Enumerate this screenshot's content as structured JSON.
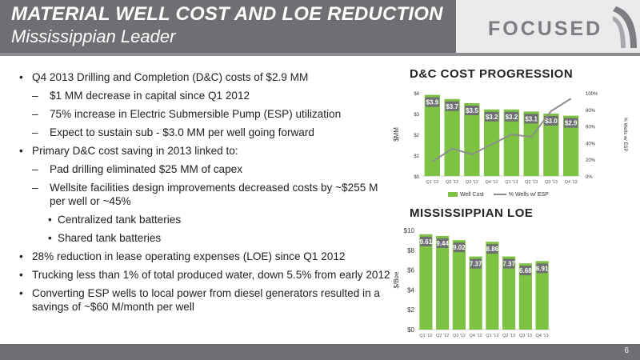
{
  "header": {
    "title": "MATERIAL WELL COST AND LOE REDUCTION",
    "subtitle": "Mississippian Leader",
    "logo_text": "FOCUSED"
  },
  "bullets": [
    {
      "level": 1,
      "text": "Q4 2013 Drilling and Completion (D&C) costs of $2.9 MM"
    },
    {
      "level": 2,
      "text": "$1 MM decrease in capital since Q1 2012"
    },
    {
      "level": 2,
      "text": "75% increase in Electric Submersible Pump (ESP) utilization"
    },
    {
      "level": 2,
      "text": "Expect to sustain sub - $3.0 MM per well going forward"
    },
    {
      "level": 1,
      "text": "Primary D&C cost saving in 2013 linked to:"
    },
    {
      "level": 2,
      "text": "Pad drilling eliminated $25 MM of capex"
    },
    {
      "level": 2,
      "text": "Wellsite facilities design improvements decreased costs by ~$255 M per well or ~45%"
    },
    {
      "level": 3,
      "text": "Centralized tank batteries"
    },
    {
      "level": 3,
      "text": "Shared tank batteries"
    },
    {
      "level": 1,
      "text": "28% reduction in lease operating expenses (LOE) since Q1 2012"
    },
    {
      "level": 1,
      "text": "Trucking less than 1% of total produced water, down 5.5% from early 2012"
    },
    {
      "level": 1,
      "text": "Converting ESP wells to local power from diesel generators resulted in a savings of ~$60 M/month per well"
    }
  ],
  "charts": {
    "dc_title": "D&C COST PROGRESSION",
    "loe_title": "MISSISSIPPIAN LOE",
    "legend_bar": "Well Cost",
    "legend_line": "% Wells w/ ESP"
  },
  "footer": {
    "page_number": "6"
  },
  "colors": {
    "bar": "#7dc242",
    "line": "#8c8c8c",
    "header": "#6d6f72"
  },
  "chart_data": [
    {
      "type": "bar",
      "title": "D&C COST PROGRESSION",
      "categories": [
        "Q1 '12",
        "Q2 '12",
        "Q3 '12",
        "Q4 '12",
        "Q1 '13",
        "Q2 '13",
        "Q3 '13",
        "Q4 '13"
      ],
      "ylabel": "$MM",
      "ylim": [
        0,
        4
      ],
      "yticks": [
        "$0",
        "$1",
        "$2",
        "$3",
        "$4"
      ],
      "y2ticks": [
        "0%",
        "20%",
        "40%",
        "60%",
        "80%",
        "100%"
      ],
      "y2lim": [
        0,
        100
      ],
      "series": [
        {
          "name": "Well Cost",
          "type": "bar",
          "values": [
            3.9,
            3.7,
            3.5,
            3.2,
            3.2,
            3.1,
            3.0,
            2.9
          ],
          "labels": [
            "$3.9",
            "$3.7",
            "$3.5",
            "$3.2",
            "$3.2",
            "$3.1",
            "$3.0",
            "$2.9"
          ]
        },
        {
          "name": "% Wells w/ ESP",
          "type": "line",
          "axis": "right",
          "values": [
            17,
            33,
            26,
            38,
            50,
            47,
            78,
            93
          ]
        }
      ],
      "legend": "bottom"
    },
    {
      "type": "bar",
      "title": "MISSISSIPPIAN LOE",
      "categories": [
        "Q1 '12",
        "Q2 '12",
        "Q3 '12",
        "Q4 '12",
        "Q1 '13",
        "Q2 '13",
        "Q3 '13",
        "Q4 '13"
      ],
      "ylabel": "$/Boe",
      "ylim": [
        0,
        10
      ],
      "yticks": [
        "$0",
        "$2",
        "$4",
        "$6",
        "$8",
        "$10"
      ],
      "values": [
        9.61,
        9.44,
        9.02,
        7.37,
        8.86,
        7.37,
        6.68,
        6.91
      ],
      "labels": [
        "9.61",
        "9.44",
        "9.02",
        "7.37",
        "8.86",
        "7.37",
        "6.68",
        "6.91"
      ]
    }
  ]
}
